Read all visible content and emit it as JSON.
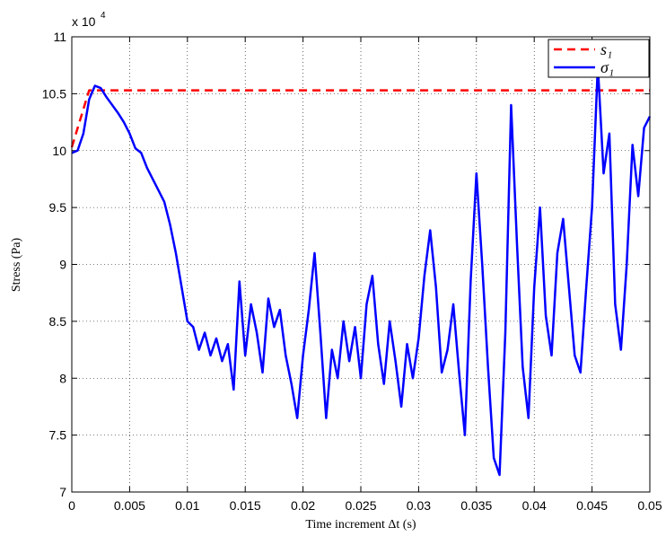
{
  "chart_data": {
    "type": "line",
    "x_label": "Time increment Δt (s)",
    "y_label": "Stress (Pa)",
    "y_scale": {
      "base": "x 10",
      "exponent": "4"
    },
    "xlim": [
      0,
      0.05
    ],
    "xticks": [
      0,
      0.005,
      0.01,
      0.015,
      0.02,
      0.025,
      0.03,
      0.035,
      0.04,
      0.045,
      0.05
    ],
    "ylim": [
      70000,
      110000
    ],
    "yticks": [
      {
        "value": 70000,
        "label": "7"
      },
      {
        "value": 75000,
        "label": "7.5"
      },
      {
        "value": 80000,
        "label": "8"
      },
      {
        "value": 85000,
        "label": "8.5"
      },
      {
        "value": 90000,
        "label": "9"
      },
      {
        "value": 95000,
        "label": "9.5"
      },
      {
        "value": 100000,
        "label": "10"
      },
      {
        "value": 105000,
        "label": "10.5"
      },
      {
        "value": 110000,
        "label": "11"
      }
    ],
    "grid": true,
    "legend": "upper-right",
    "series": [
      {
        "name": "s₁",
        "color": "#ff0000",
        "style": "dashed",
        "x": [
          0,
          0.0015,
          0.05
        ],
        "values": [
          100300,
          105300,
          105300
        ]
      },
      {
        "name": "σ₁",
        "color": "#0000ff",
        "style": "solid",
        "x": [
          0,
          0.0005,
          0.001,
          0.0015,
          0.002,
          0.0025,
          0.003,
          0.0035,
          0.004,
          0.0045,
          0.005,
          0.0055,
          0.006,
          0.0065,
          0.007,
          0.0075,
          0.008,
          0.0085,
          0.009,
          0.0095,
          0.01,
          0.0105,
          0.011,
          0.0115,
          0.012,
          0.0125,
          0.013,
          0.0135,
          0.014,
          0.0145,
          0.015,
          0.0155,
          0.016,
          0.0165,
          0.017,
          0.0175,
          0.018,
          0.0185,
          0.019,
          0.0195,
          0.02,
          0.0205,
          0.021,
          0.0215,
          0.022,
          0.0225,
          0.023,
          0.0235,
          0.024,
          0.0245,
          0.025,
          0.0255,
          0.026,
          0.0265,
          0.027,
          0.0275,
          0.028,
          0.0285,
          0.029,
          0.0295,
          0.03,
          0.0305,
          0.031,
          0.0315,
          0.032,
          0.0325,
          0.033,
          0.0335,
          0.034,
          0.0345,
          0.035,
          0.0355,
          0.036,
          0.0365,
          0.037,
          0.0375,
          0.038,
          0.0385,
          0.039,
          0.0395,
          0.04,
          0.0405,
          0.041,
          0.0415,
          0.042,
          0.0425,
          0.043,
          0.0435,
          0.044,
          0.0445,
          0.045,
          0.0455,
          0.046,
          0.0465,
          0.047,
          0.0475,
          0.048,
          0.0485,
          0.049,
          0.0495,
          0.05
        ],
        "values": [
          99800,
          100000,
          101500,
          104500,
          105700,
          105500,
          104700,
          104000,
          103300,
          102500,
          101500,
          100200,
          99800,
          98500,
          97500,
          96500,
          95500,
          93500,
          91000,
          88000,
          85000,
          84500,
          82500,
          84000,
          82000,
          83500,
          81500,
          83000,
          79000,
          88500,
          82000,
          86500,
          84000,
          80500,
          87000,
          84500,
          86000,
          82000,
          79500,
          76500,
          82000,
          86000,
          91000,
          84000,
          76500,
          82500,
          80000,
          85000,
          81500,
          84500,
          80000,
          86500,
          89000,
          83000,
          79500,
          85000,
          81500,
          77500,
          83000,
          80000,
          83500,
          89000,
          93000,
          88000,
          80500,
          82500,
          86500,
          80500,
          75000,
          88500,
          98000,
          90000,
          81000,
          73000,
          71500,
          84000,
          104000,
          92000,
          81000,
          76500,
          88000,
          95000,
          85500,
          82000,
          91000,
          94000,
          88000,
          82000,
          80500,
          88000,
          95000,
          107500,
          98000,
          101500,
          86500,
          82500,
          90000,
          100500,
          96000,
          102000,
          103000
        ]
      }
    ]
  }
}
